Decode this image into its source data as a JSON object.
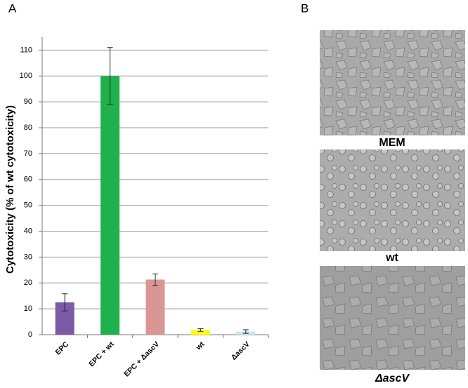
{
  "chart_data": {
    "type": "bar",
    "y_label": "Cytotoxicity (% of wt cytotoxicity)",
    "categories": [
      "EPC",
      "EPC + wt",
      "EPC + ΔascV",
      "wt",
      "ΔascV"
    ],
    "values": [
      12.5,
      100,
      21.3,
      1.8,
      1.2
    ],
    "errors": [
      3.3,
      11,
      2.2,
      0.5,
      0.7
    ],
    "colors": [
      "#7b5aa6",
      "#1fb24c",
      "#d99694",
      "#ffff00",
      "#c6e8f0"
    ],
    "ylim": [
      0,
      115
    ],
    "yticks": [
      0,
      10,
      20,
      30,
      40,
      50,
      60,
      70,
      80,
      90,
      100,
      110
    ],
    "grid": true
  },
  "panels": {
    "a_label": "A",
    "b_label": "B",
    "images": [
      {
        "caption": "MEM"
      },
      {
        "caption": "wt"
      },
      {
        "caption": "ΔascV"
      }
    ]
  }
}
